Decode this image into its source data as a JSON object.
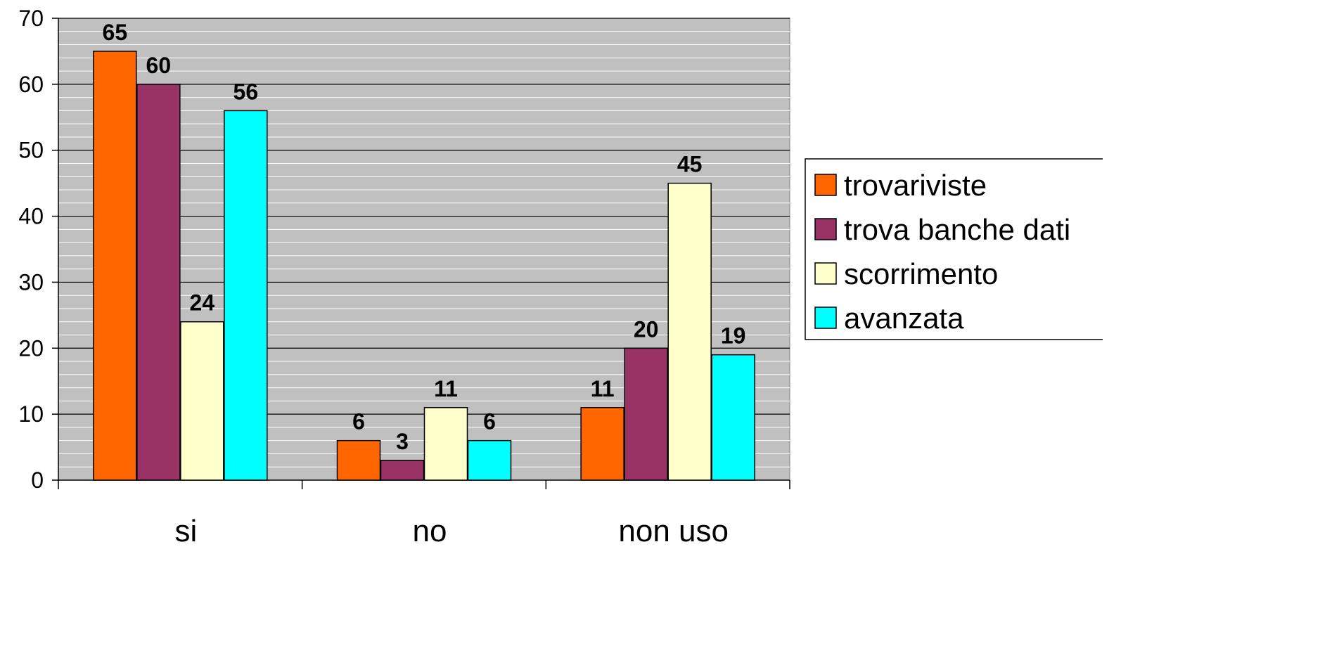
{
  "chart_data": {
    "type": "bar",
    "title": "",
    "xlabel": "",
    "ylabel": "",
    "categories": [
      "si",
      "no",
      "non uso"
    ],
    "series": [
      {
        "name": "trovariviste",
        "color": "#ff6600",
        "values": [
          65,
          6,
          11
        ]
      },
      {
        "name": "trova banche dati",
        "color": "#993366",
        "values": [
          60,
          3,
          20
        ]
      },
      {
        "name": "scorrimento",
        "color": "#ffffcc",
        "values": [
          24,
          11,
          45
        ]
      },
      {
        "name": "avanzata",
        "color": "#00ffff",
        "values": [
          56,
          6,
          19
        ]
      }
    ],
    "ylim": [
      0,
      70
    ],
    "yticks": [
      0,
      10,
      20,
      30,
      40,
      50,
      60,
      70
    ],
    "plot_background": "#c0c0c0",
    "grid": true,
    "legend_position": "right",
    "data_labels": true
  }
}
